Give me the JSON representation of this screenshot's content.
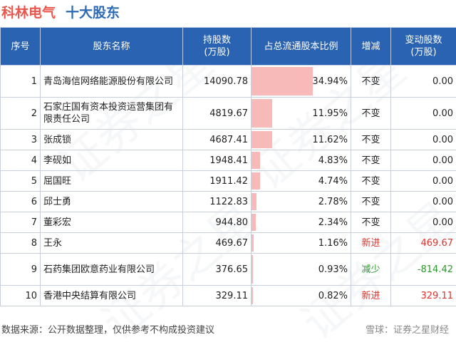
{
  "header": {
    "company": "科林电气",
    "subtitle": "十大股东"
  },
  "columns": {
    "rank": "序号",
    "name": "股东名称",
    "shares": "持股数\n(万股)",
    "ratio": "占总流通股本比例",
    "change": "增减",
    "change_amount": "变动股数\n(万股)"
  },
  "rows": [
    {
      "rank": "1",
      "name": "青岛海信网络能源股份有限公司",
      "shares": "14090.78",
      "ratio": "34.94%",
      "ratio_value": 34.94,
      "change": "不变",
      "change_amount": "0.00"
    },
    {
      "rank": "2",
      "name": "石家庄国有资本投资运营集团有限责任公司",
      "shares": "4819.67",
      "ratio": "11.95%",
      "ratio_value": 11.95,
      "change": "不变",
      "change_amount": "0.00"
    },
    {
      "rank": "3",
      "name": "张成锁",
      "shares": "4687.41",
      "ratio": "11.62%",
      "ratio_value": 11.62,
      "change": "不变",
      "change_amount": "0.00"
    },
    {
      "rank": "4",
      "name": "李砚如",
      "shares": "1948.41",
      "ratio": "4.83%",
      "ratio_value": 4.83,
      "change": "不变",
      "change_amount": "0.00"
    },
    {
      "rank": "5",
      "name": "屈国旺",
      "shares": "1911.42",
      "ratio": "4.74%",
      "ratio_value": 4.74,
      "change": "不变",
      "change_amount": "0.00"
    },
    {
      "rank": "6",
      "name": "邱士勇",
      "shares": "1122.83",
      "ratio": "2.78%",
      "ratio_value": 2.78,
      "change": "不变",
      "change_amount": "0.00"
    },
    {
      "rank": "7",
      "name": "董彩宏",
      "shares": "944.80",
      "ratio": "2.34%",
      "ratio_value": 2.34,
      "change": "不变",
      "change_amount": "0.00"
    },
    {
      "rank": "8",
      "name": "王永",
      "shares": "469.67",
      "ratio": "1.16%",
      "ratio_value": 1.16,
      "change": "新进",
      "change_amount": "469.67"
    },
    {
      "rank": "9",
      "name": "石药集团欧意药业有限公司",
      "shares": "376.65",
      "ratio": "0.93%",
      "ratio_value": 0.93,
      "change": "减少",
      "change_amount": "-814.42"
    },
    {
      "rank": "10",
      "name": "香港中央结算有限公司",
      "shares": "329.11",
      "ratio": "0.82%",
      "ratio_value": 0.82,
      "change": "新进",
      "change_amount": "329.11"
    }
  ],
  "footer": {
    "source": "数据来源：公开数据整理，仅供参考不构成投资建议",
    "logo_text": "雪球：证券之星财经"
  },
  "watermark": "证券之星",
  "colors": {
    "title_company": "#e8574d",
    "title_sub": "#2e6ab4",
    "header_bg": "#2a63b1",
    "bar": "#f8b9b9",
    "increase": "#e0302a",
    "decrease": "#2a9a2a"
  }
}
